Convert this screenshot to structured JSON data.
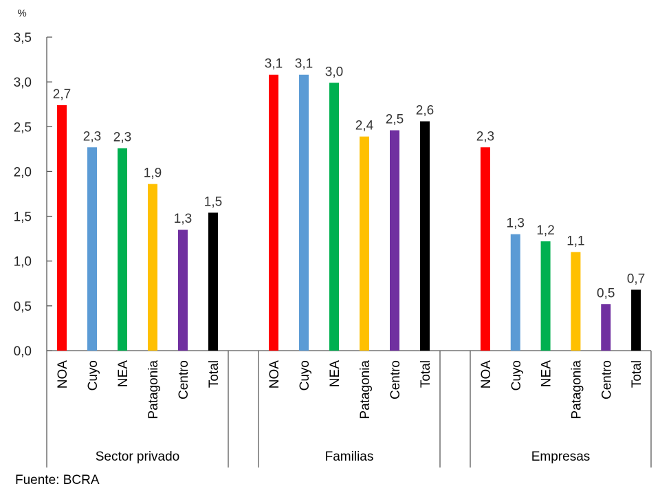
{
  "chart_data": {
    "type": "bar",
    "title": "",
    "ylabel": "%",
    "xlabel": "",
    "ylim": [
      0,
      3.5
    ],
    "yticks": [
      "0,0",
      "0,5",
      "1,0",
      "1,5",
      "2,0",
      "2,5",
      "3,0",
      "3,5"
    ],
    "ytick_values": [
      0,
      0.5,
      1.0,
      1.5,
      2.0,
      2.5,
      3.0,
      3.5
    ],
    "grid": false,
    "legend": "none",
    "categories": [
      "NOA",
      "Cuyo",
      "NEA",
      "Patagonia",
      "Centro",
      "Total"
    ],
    "colors": [
      "#ff0000",
      "#5b9bd5",
      "#00b050",
      "#ffc000",
      "#7030a0",
      "#000000"
    ],
    "groups": [
      {
        "name": "Sector privado",
        "values": [
          2.74,
          2.27,
          2.26,
          1.86,
          1.35,
          1.54
        ],
        "labels": [
          "2,7",
          "2,3",
          "2,3",
          "1,9",
          "1,3",
          "1,5"
        ]
      },
      {
        "name": "Familias",
        "values": [
          3.08,
          3.08,
          2.99,
          2.39,
          2.46,
          2.56
        ],
        "labels": [
          "3,1",
          "3,1",
          "3,0",
          "2,4",
          "2,5",
          "2,6"
        ]
      },
      {
        "name": "Empresas",
        "values": [
          2.27,
          1.3,
          1.22,
          1.1,
          0.52,
          0.68
        ],
        "labels": [
          "2,3",
          "1,3",
          "1,2",
          "1,1",
          "0,5",
          "0,7"
        ]
      }
    ]
  },
  "source": "Fuente: BCRA"
}
